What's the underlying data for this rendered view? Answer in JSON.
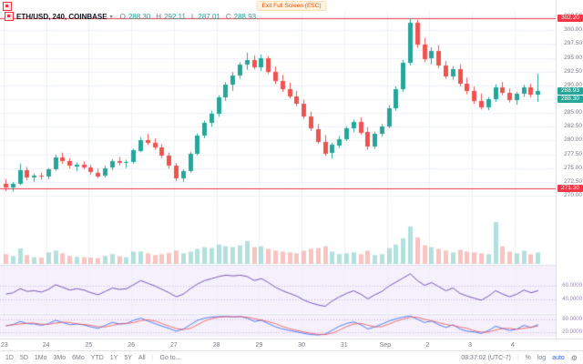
{
  "window": {
    "exit_fullscreen_label": "Exit Full Screen (ESC)"
  },
  "legend": {
    "symbol": "ETH/USD, 240, COINBASE",
    "o_k": "O",
    "o_v": "288.30",
    "h_k": "H",
    "h_v": "292.11",
    "l_k": "L",
    "l_v": "287.01",
    "c_k": "C",
    "c_v": "288.93"
  },
  "price_axis": {
    "labels": [
      "302.50",
      "300.00",
      "297.50",
      "295.00",
      "292.50",
      "290.00",
      "287.50",
      "285.00",
      "282.50",
      "280.00",
      "277.50",
      "275.00",
      "272.50",
      "270.00"
    ]
  },
  "badges": {
    "high": "302.20",
    "last": "288.93",
    "secondary": "288.30",
    "low": "271.30"
  },
  "indicator1": {
    "grid_labels": [
      "60.0000",
      "40.0000"
    ],
    "grid_values": [
      60,
      40
    ],
    "range": [
      20,
      90
    ]
  },
  "indicator2": {
    "grid_labels": [
      "80.0000",
      "20.0000"
    ],
    "grid_values": [
      80,
      20
    ],
    "range": [
      0,
      100
    ]
  },
  "time_axis": {
    "days": [
      {
        "label": "23",
        "index": 0
      },
      {
        "label": "24",
        "index": 6
      },
      {
        "label": "25",
        "index": 12
      },
      {
        "label": "26",
        "index": 18
      },
      {
        "label": "27",
        "index": 24
      },
      {
        "label": "28",
        "index": 30
      },
      {
        "label": "29",
        "index": 36
      },
      {
        "label": "30",
        "index": 42
      },
      {
        "label": "31",
        "index": 48
      },
      {
        "label": "Sep",
        "index": 54
      },
      {
        "label": "2",
        "index": 60
      },
      {
        "label": "3",
        "index": 66
      },
      {
        "label": "4",
        "index": 72
      }
    ]
  },
  "toolbar": {
    "ranges": [
      "1D",
      "5D",
      "1Mo",
      "3Mo",
      "6Mo",
      "YTD",
      "1Y",
      "5Y",
      "All"
    ],
    "goto": "Go to...",
    "clock": "08:37:02 (UTC-7)",
    "percent": "%",
    "log": "log",
    "auto": "auto"
  },
  "colors": {
    "up": "#26a69a",
    "down": "#ef5350",
    "level_line": "#f23645",
    "accent": "#2962ff",
    "rsi_line": "#7e57c2",
    "grid": "#eef1f8",
    "pane_bg": "#f5f0fb"
  },
  "chart_data": {
    "type": "candlestick",
    "title": "ETH/USD, 240, COINBASE",
    "symbol": "ETH/USD",
    "interval": "240",
    "exchange": "COINBASE",
    "y_range": [
      269.5,
      303.5
    ],
    "levels": {
      "high_line": 302.2,
      "low_line": 271.3,
      "last": 288.93
    },
    "candles": [
      [
        272.2,
        273.0,
        270.8,
        271.5
      ],
      [
        271.5,
        272.5,
        270.7,
        272.2
      ],
      [
        272.2,
        275.8,
        271.9,
        274.6
      ],
      [
        274.6,
        275.2,
        272.8,
        273.2
      ],
      [
        273.2,
        274.0,
        272.5,
        273.6
      ],
      [
        273.6,
        274.2,
        272.9,
        273.4
      ],
      [
        273.4,
        275.0,
        273.0,
        274.8
      ],
      [
        274.8,
        277.4,
        274.5,
        276.9
      ],
      [
        276.9,
        277.8,
        275.8,
        276.2
      ],
      [
        276.2,
        276.8,
        274.9,
        275.3
      ],
      [
        275.3,
        276.0,
        274.4,
        275.6
      ],
      [
        275.6,
        276.2,
        274.8,
        275.1
      ],
      [
        275.1,
        275.6,
        273.8,
        274.2
      ],
      [
        274.2,
        274.9,
        273.2,
        273.6
      ],
      [
        273.6,
        275.4,
        273.3,
        275.0
      ],
      [
        275.0,
        276.6,
        274.6,
        276.2
      ],
      [
        276.2,
        277.0,
        275.5,
        275.9
      ],
      [
        275.9,
        276.5,
        275.0,
        276.1
      ],
      [
        276.1,
        278.5,
        275.8,
        278.2
      ],
      [
        278.2,
        280.6,
        277.9,
        280.1
      ],
      [
        280.1,
        281.2,
        279.2,
        279.6
      ],
      [
        279.6,
        280.4,
        278.3,
        278.7
      ],
      [
        278.7,
        279.3,
        276.8,
        277.2
      ],
      [
        277.2,
        277.8,
        274.9,
        275.4
      ],
      [
        275.4,
        275.9,
        272.6,
        273.1
      ],
      [
        273.1,
        274.8,
        272.5,
        274.5
      ],
      [
        274.5,
        277.9,
        274.2,
        277.6
      ],
      [
        277.6,
        281.3,
        277.3,
        280.9
      ],
      [
        280.9,
        283.6,
        280.4,
        283.2
      ],
      [
        283.2,
        285.4,
        282.5,
        284.8
      ],
      [
        284.8,
        288.2,
        284.3,
        287.8
      ],
      [
        287.8,
        290.6,
        287.2,
        290.1
      ],
      [
        290.1,
        292.4,
        289.0,
        291.8
      ],
      [
        291.8,
        294.2,
        291.2,
        293.7
      ],
      [
        293.7,
        295.9,
        292.8,
        294.6
      ],
      [
        294.6,
        295.4,
        292.9,
        293.3
      ],
      [
        293.3,
        295.6,
        292.6,
        294.9
      ],
      [
        294.9,
        295.3,
        292.1,
        292.5
      ],
      [
        292.5,
        293.4,
        290.2,
        290.8
      ],
      [
        290.8,
        291.9,
        288.8,
        289.3
      ],
      [
        289.3,
        290.5,
        287.6,
        288.0
      ],
      [
        288.0,
        289.0,
        286.2,
        286.6
      ],
      [
        286.6,
        287.4,
        283.9,
        284.3
      ],
      [
        284.3,
        285.2,
        281.7,
        282.1
      ],
      [
        282.1,
        283.0,
        279.4,
        279.8
      ],
      [
        279.8,
        281.0,
        277.2,
        277.7
      ],
      [
        277.7,
        279.6,
        276.7,
        279.2
      ],
      [
        279.2,
        280.8,
        278.6,
        280.3
      ],
      [
        280.3,
        282.6,
        279.9,
        282.2
      ],
      [
        282.2,
        283.8,
        281.5,
        283.4
      ],
      [
        283.4,
        284.2,
        281.0,
        281.5
      ],
      [
        281.5,
        282.4,
        278.3,
        278.9
      ],
      [
        278.9,
        281.6,
        278.5,
        281.2
      ],
      [
        281.2,
        283.0,
        280.7,
        282.6
      ],
      [
        282.6,
        286.4,
        282.2,
        285.9
      ],
      [
        285.9,
        289.8,
        285.4,
        289.3
      ],
      [
        289.3,
        294.6,
        288.8,
        294.1
      ],
      [
        294.1,
        302.2,
        293.6,
        301.3
      ],
      [
        301.3,
        301.9,
        296.8,
        297.4
      ],
      [
        297.4,
        298.6,
        294.2,
        294.8
      ],
      [
        294.8,
        296.9,
        293.8,
        296.2
      ],
      [
        296.2,
        297.3,
        293.1,
        293.6
      ],
      [
        293.6,
        294.4,
        291.2,
        291.7
      ],
      [
        291.7,
        293.5,
        291.0,
        293.0
      ],
      [
        293.0,
        293.8,
        289.8,
        290.3
      ],
      [
        290.3,
        291.4,
        288.4,
        288.9
      ],
      [
        288.9,
        289.8,
        286.6,
        287.1
      ],
      [
        287.1,
        288.5,
        285.6,
        286.0
      ],
      [
        286.0,
        287.9,
        285.5,
        287.5
      ],
      [
        287.5,
        290.2,
        287.0,
        289.7
      ],
      [
        289.7,
        290.6,
        288.2,
        288.7
      ],
      [
        288.7,
        289.4,
        286.9,
        287.3
      ],
      [
        287.3,
        288.8,
        286.5,
        288.4
      ],
      [
        288.4,
        290.1,
        287.9,
        289.6
      ],
      [
        289.6,
        290.3,
        287.8,
        288.2
      ],
      [
        288.3,
        292.11,
        287.01,
        288.93
      ]
    ],
    "volume": [
      22,
      18,
      35,
      20,
      15,
      14,
      26,
      30,
      24,
      18,
      16,
      15,
      14,
      13,
      18,
      22,
      17,
      15,
      28,
      28,
      24,
      20,
      22,
      25,
      30,
      24,
      28,
      34,
      38,
      36,
      44,
      40,
      38,
      42,
      52,
      38,
      40,
      34,
      30,
      28,
      26,
      24,
      30,
      34,
      36,
      40,
      28,
      22,
      24,
      26,
      22,
      30,
      20,
      22,
      36,
      44,
      58,
      85,
      60,
      42,
      38,
      34,
      30,
      26,
      32,
      28,
      26,
      24,
      22,
      95,
      40,
      28,
      24,
      30,
      22,
      26
    ],
    "rsi": [
      48,
      50,
      56,
      52,
      53,
      51,
      55,
      62,
      58,
      54,
      56,
      54,
      50,
      47,
      52,
      57,
      55,
      56,
      62,
      68,
      64,
      60,
      55,
      50,
      44,
      48,
      56,
      63,
      68,
      71,
      74,
      76,
      75,
      76,
      74,
      68,
      71,
      65,
      58,
      53,
      49,
      45,
      39,
      35,
      32,
      30,
      38,
      44,
      49,
      53,
      48,
      41,
      47,
      52,
      60,
      66,
      72,
      78,
      68,
      61,
      65,
      59,
      53,
      57,
      49,
      45,
      42,
      39,
      45,
      53,
      48,
      44,
      48,
      54,
      50,
      53
    ],
    "stoch_k": [
      50,
      55,
      70,
      60,
      58,
      52,
      60,
      75,
      65,
      55,
      58,
      54,
      45,
      38,
      52,
      66,
      58,
      60,
      75,
      85,
      72,
      60,
      48,
      38,
      25,
      35,
      55,
      75,
      85,
      90,
      92,
      93,
      90,
      92,
      85,
      70,
      75,
      60,
      45,
      35,
      28,
      22,
      15,
      10,
      8,
      12,
      30,
      48,
      60,
      68,
      55,
      35,
      45,
      58,
      72,
      82,
      90,
      95,
      80,
      65,
      72,
      55,
      42,
      55,
      35,
      25,
      22,
      15,
      28,
      48,
      38,
      28,
      35,
      52,
      42,
      55
    ]
  }
}
